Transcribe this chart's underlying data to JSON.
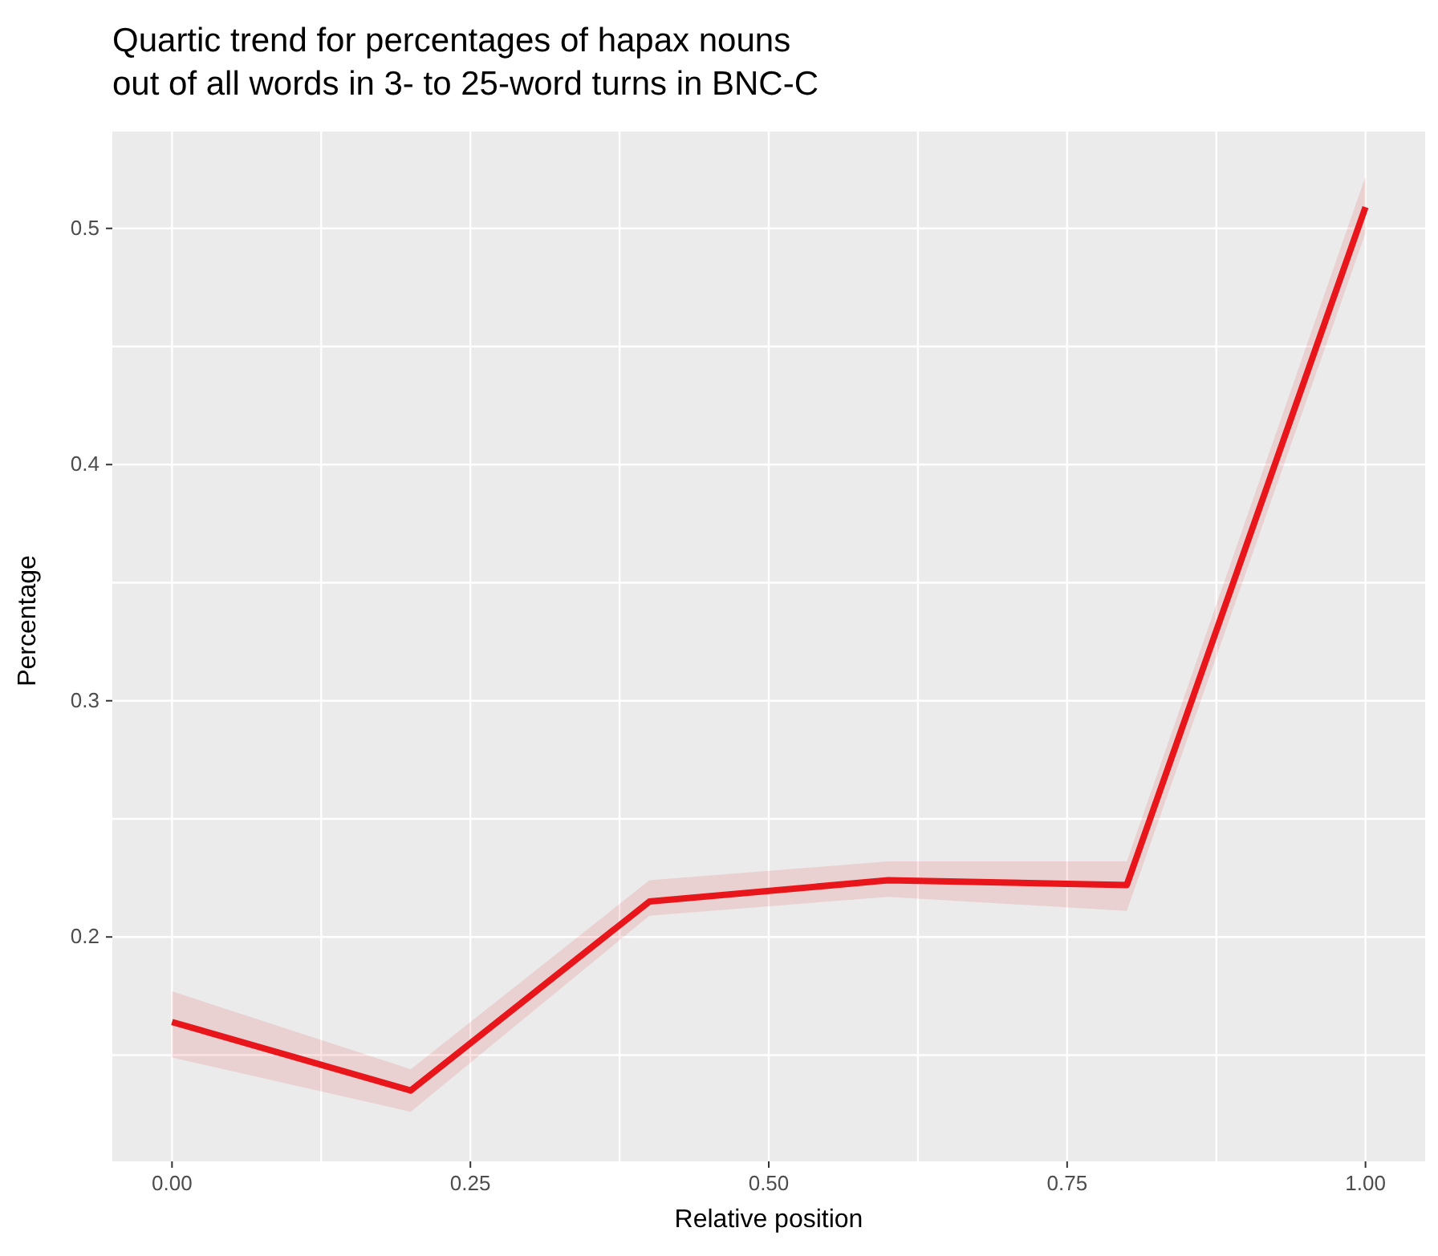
{
  "chart_data": {
    "type": "line",
    "title": "Quartic trend for percentages of hapax nouns\nout of all words in 3- to 25-word turns in BNC-C",
    "xlabel": "Relative position",
    "ylabel": "Percentage",
    "x": [
      0,
      0.2,
      0.4,
      0.6,
      0.8,
      1
    ],
    "series": [
      {
        "color": "#e8161b",
        "values": [
          0.164,
          0.135,
          0.215,
          0.224,
          0.222,
          0.509
        ],
        "lower": [
          0.149,
          0.126,
          0.209,
          0.217,
          0.211,
          0.498
        ],
        "upper": [
          0.177,
          0.144,
          0.224,
          0.232,
          0.232,
          0.522
        ]
      }
    ],
    "xlim": [
      -0.05,
      1.05
    ],
    "xticks": [
      {
        "value": 0,
        "label": "0.00"
      },
      {
        "value": 0.125,
        "label": null
      },
      {
        "value": 0.25,
        "label": "0.25"
      },
      {
        "value": 0.375,
        "label": null
      },
      {
        "value": 0.5,
        "label": "0.50"
      },
      {
        "value": 0.625,
        "label": null
      },
      {
        "value": 0.75,
        "label": "0.75"
      },
      {
        "value": 0.875,
        "label": null
      },
      {
        "value": 1,
        "label": "1.00"
      }
    ],
    "ylim": [
      0.105,
      0.541
    ],
    "yticks": [
      {
        "value": 0.15,
        "label": null
      },
      0.2,
      {
        "value": 0.25,
        "label": null
      },
      0.3,
      {
        "value": 0.35,
        "label": null
      },
      0.4,
      {
        "value": 0.45,
        "label": null
      },
      0.5
    ],
    "grid": true,
    "marker": "none",
    "line_style": "solid"
  }
}
